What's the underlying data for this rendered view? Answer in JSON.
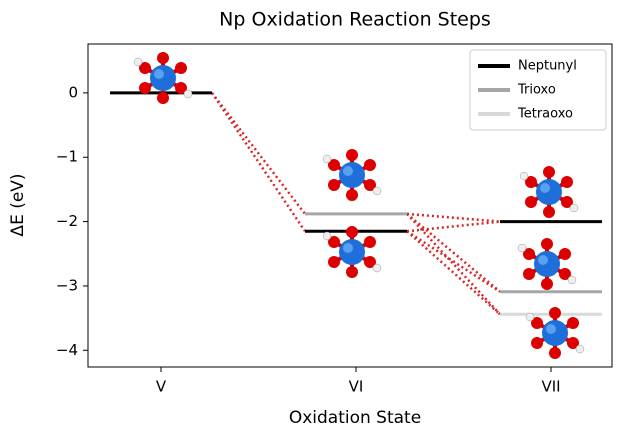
{
  "chart_data": {
    "type": "energy-levels",
    "title": "Np Oxidation Reaction Steps",
    "x_label": "Oxidation State",
    "y_label": "ΔE (eV)",
    "categories": [
      "V",
      "VI",
      "VII"
    ],
    "series": [
      {
        "name": "Neptunyl",
        "color": "#000000",
        "values": [
          0,
          -2.15,
          -2.0
        ]
      },
      {
        "name": "Trioxo",
        "color": "#a6a6a6",
        "values": [
          null,
          -1.88,
          -3.09
        ]
      },
      {
        "name": "Tetraoxo",
        "color": "#d9d9d9",
        "values": [
          null,
          null,
          -3.44
        ]
      }
    ],
    "connector_color": "#d62728",
    "ylim": [
      -4.26,
      0.76
    ],
    "yticks": [
      0,
      {
        "value": -1,
        "label": "−1"
      },
      {
        "value": -2,
        "label": "−2"
      },
      {
        "value": -3,
        "label": "−3"
      },
      {
        "value": -4,
        "label": "−4"
      }
    ],
    "legend": "upper right"
  }
}
